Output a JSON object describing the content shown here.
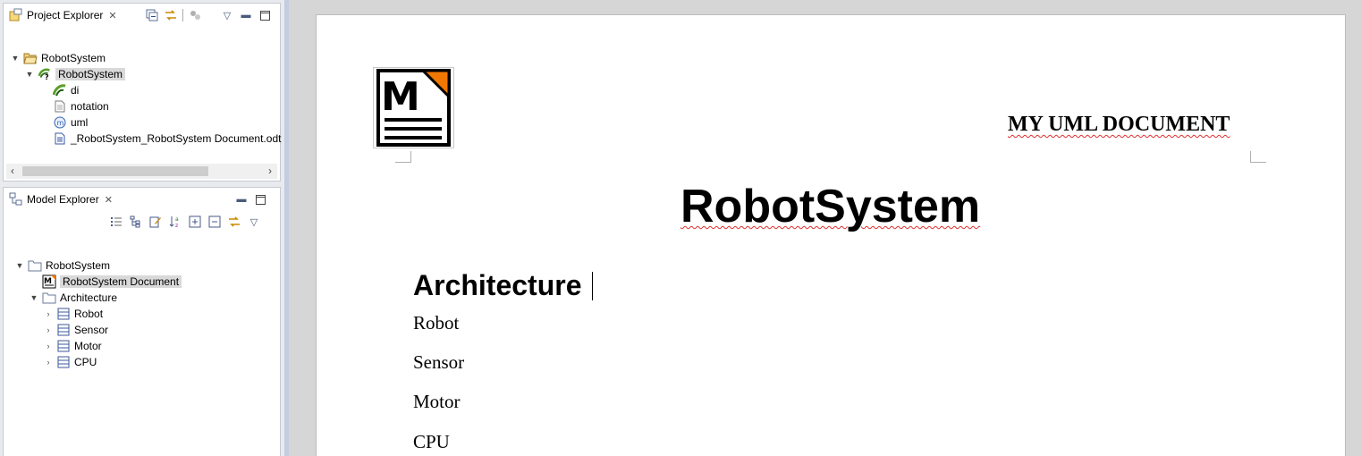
{
  "project_explorer": {
    "title": "Project Explorer",
    "close_glyph": "✕",
    "tree": [
      {
        "label": "RobotSystem",
        "icon": "folder-open-icon",
        "expanded": true,
        "level": 0
      },
      {
        "label": "RobotSystem",
        "icon": "papyrus-model-icon",
        "expanded": true,
        "level": 1,
        "selected": true
      },
      {
        "label": "di",
        "icon": "papyrus-di-icon",
        "level": 2
      },
      {
        "label": "notation",
        "icon": "file-icon",
        "level": 2
      },
      {
        "label": "uml",
        "icon": "uml-file-icon",
        "level": 2
      },
      {
        "label": "_RobotSystem_RobotSystem Document.odt",
        "icon": "odt-file-icon",
        "level": 2
      }
    ]
  },
  "model_explorer": {
    "title": "Model Explorer",
    "close_glyph": "✕",
    "tree": [
      {
        "label": "RobotSystem",
        "icon": "package-icon",
        "expanded": true,
        "level": 0
      },
      {
        "label": "RobotSystem Document",
        "icon": "document-template-icon",
        "level": 1,
        "selected": true
      },
      {
        "label": "Architecture",
        "icon": "package-icon",
        "expanded": true,
        "level": 1
      },
      {
        "label": "Robot",
        "icon": "class-icon",
        "collapsed": true,
        "level": 2
      },
      {
        "label": "Sensor",
        "icon": "class-icon",
        "collapsed": true,
        "level": 2
      },
      {
        "label": "Motor",
        "icon": "class-icon",
        "collapsed": true,
        "level": 2
      },
      {
        "label": "CPU",
        "icon": "class-icon",
        "collapsed": true,
        "level": 2
      }
    ]
  },
  "document": {
    "header_title": "MY UML DOCUMENT",
    "logo_letter": "M",
    "title": "RobotSystem",
    "heading": "Architecture",
    "paragraphs": [
      "Robot",
      "Sensor",
      "Motor",
      "CPU"
    ]
  },
  "colors": {
    "logo_accent": "#f07800",
    "spell_error": "#e03030",
    "selection": "#d9d9d9"
  }
}
